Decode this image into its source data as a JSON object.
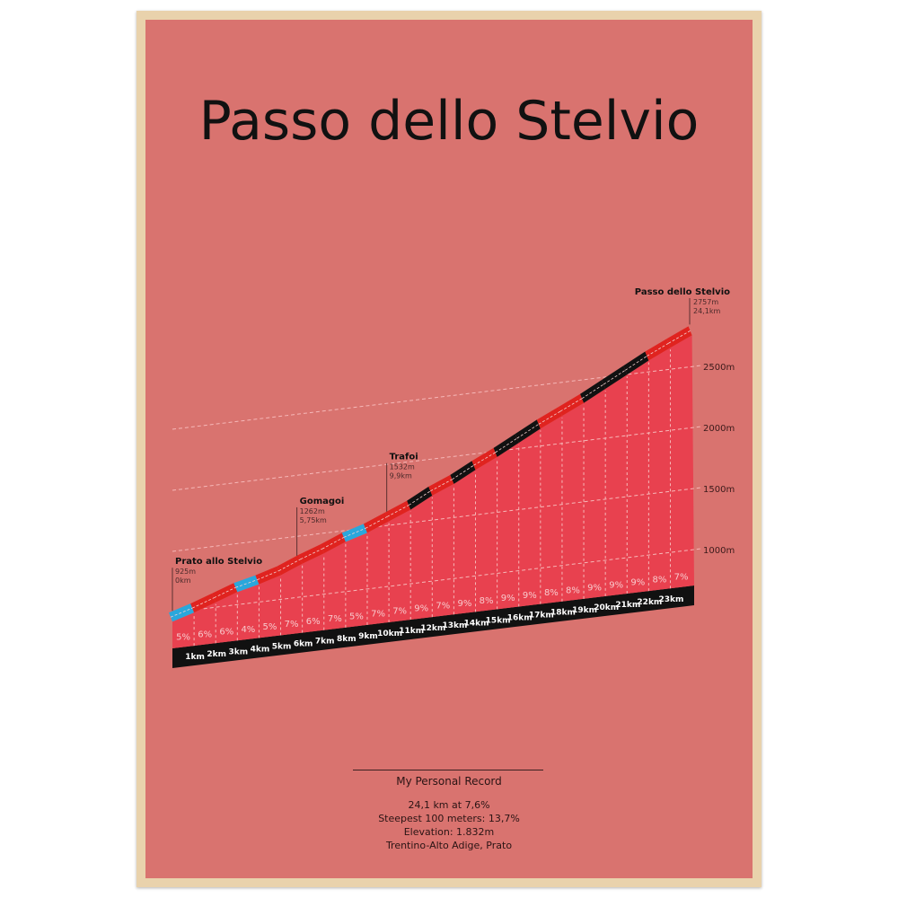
{
  "title": "Passo dello Stelvio",
  "chart_data": {
    "type": "area",
    "title": "Passo dello Stelvio",
    "xlabel": "",
    "ylabel": "",
    "x_unit": "km",
    "total_km": 24.1,
    "km_labels": [
      "1km",
      "2km",
      "3km",
      "4km",
      "5km",
      "6km",
      "7km",
      "8km",
      "9km",
      "10km",
      "11km",
      "12km",
      "13km",
      "14km",
      "15km",
      "16km",
      "17km",
      "18km",
      "19km",
      "20km",
      "21km",
      "22km",
      "23km"
    ],
    "grades": [
      "5%",
      "6%",
      "6%",
      "4%",
      "5%",
      "7%",
      "6%",
      "7%",
      "5%",
      "7%",
      "7%",
      "9%",
      "7%",
      "9%",
      "8%",
      "9%",
      "9%",
      "8%",
      "8%",
      "9%",
      "9%",
      "9%",
      "8%",
      "7%"
    ],
    "grade_values": [
      5,
      6,
      6,
      4,
      5,
      7,
      6,
      7,
      5,
      7,
      7,
      9,
      7,
      9,
      8,
      9,
      9,
      8,
      8,
      9,
      9,
      9,
      8,
      7
    ],
    "segment_colors": [
      "blue",
      "red",
      "red",
      "blue",
      "red",
      "red",
      "red",
      "red",
      "blue",
      "red",
      "red",
      "black",
      "red",
      "black",
      "red",
      "black",
      "black",
      "red",
      "red",
      "black",
      "black",
      "black",
      "red",
      "red"
    ],
    "elevation_ticks": [
      {
        "value": 1000,
        "label": "1000m"
      },
      {
        "value": 1500,
        "label": "1500m"
      },
      {
        "value": 2000,
        "label": "2000m"
      },
      {
        "value": 2500,
        "label": "2500m"
      }
    ],
    "start_elevation": 925,
    "end_elevation": 2757,
    "landmarks": [
      {
        "name": "Prato allo Stelvio",
        "elev": "925m",
        "dist": "0km",
        "km": 0
      },
      {
        "name": "Gomagoi",
        "elev": "1262m",
        "dist": "5,75km",
        "km": 5.75
      },
      {
        "name": "Trafoi",
        "elev": "1532m",
        "dist": "9,9km",
        "km": 9.9
      },
      {
        "name": "Passo dello Stelvio",
        "elev": "2757m",
        "dist": "24,1km",
        "km": 24.1
      }
    ],
    "grid": true
  },
  "colors": {
    "poster": "#d9736f",
    "face": "#e8414f",
    "red": "#e0231f",
    "blue": "#2aa7dc",
    "black": "#111111",
    "frame": "#e9d2ac"
  },
  "record": {
    "heading": "My Personal Record",
    "lines": [
      "24,1 km at 7,6%",
      "Steepest 100 meters: 13,7%",
      "Elevation: 1.832m",
      "Trentino-Alto Adige, Prato"
    ]
  }
}
